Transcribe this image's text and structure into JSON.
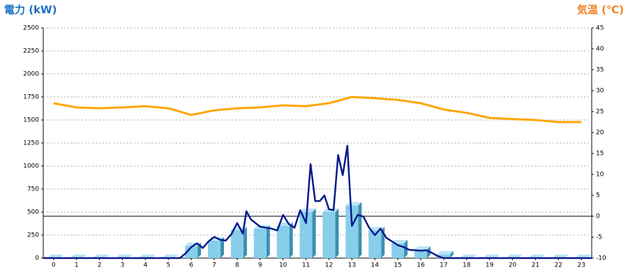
{
  "chart_data": {
    "type": "combo",
    "y_title": "電力 (kW)",
    "y2_title": "気温 (℃)",
    "xlim": [
      -0.45,
      23.45
    ],
    "xticks": [
      0,
      1,
      2,
      3,
      4,
      5,
      6,
      7,
      8,
      9,
      10,
      11,
      12,
      13,
      14,
      15,
      16,
      17,
      18,
      19,
      20,
      21,
      22,
      23
    ],
    "ylim": [
      0,
      2500
    ],
    "yticks": [
      0,
      250,
      500,
      750,
      1000,
      1250,
      1500,
      1750,
      2000,
      2250,
      2500
    ],
    "y2lim": [
      -10,
      45
    ],
    "y2ticks": [
      -10,
      -5,
      0,
      5,
      10,
      15,
      20,
      25,
      30,
      35,
      40,
      45
    ],
    "grid": true,
    "reference_line": {
      "axis": "y2",
      "value": 0
    },
    "series": [
      {
        "type": "bar",
        "color": "#87ceeb",
        "x": [
          0,
          1,
          2,
          3,
          4,
          5,
          6,
          7,
          8,
          9,
          10,
          11,
          12,
          13,
          14,
          15,
          16,
          17,
          18,
          19,
          20,
          21,
          22,
          23
        ],
        "values": [
          0,
          0,
          0,
          0,
          0,
          0,
          130,
          190,
          300,
          320,
          350,
          500,
          500,
          570,
          300,
          160,
          90,
          40,
          0,
          0,
          0,
          0,
          0,
          0
        ]
      },
      {
        "type": "line",
        "color": "#0a1a8c",
        "x": [
          -0.45,
          5.5,
          5.75,
          6,
          6.25,
          6.5,
          6.75,
          7,
          7.25,
          7.5,
          7.75,
          8,
          8.25,
          8.4,
          8.6,
          8.8,
          9,
          9.25,
          9.5,
          9.75,
          10,
          10.25,
          10.5,
          10.75,
          11,
          11.2,
          11.4,
          11.6,
          11.8,
          12,
          12.2,
          12.4,
          12.6,
          12.8,
          13,
          13.25,
          13.5,
          13.75,
          14,
          14.25,
          14.5,
          14.75,
          15,
          15.25,
          15.5,
          16,
          16.25,
          16.5,
          16.75,
          17,
          23.45
        ],
        "values": [
          0,
          0,
          50,
          120,
          160,
          110,
          180,
          230,
          200,
          190,
          260,
          380,
          265,
          510,
          420,
          380,
          340,
          330,
          320,
          300,
          470,
          370,
          330,
          520,
          380,
          1020,
          620,
          620,
          680,
          530,
          520,
          1120,
          900,
          1220,
          350,
          470,
          450,
          330,
          250,
          320,
          220,
          180,
          140,
          120,
          90,
          80,
          85,
          55,
          20,
          0,
          0
        ]
      },
      {
        "type": "line",
        "axis": "y2",
        "color": "#ffa500",
        "x": [
          0,
          1,
          2,
          3,
          4,
          5,
          6,
          7,
          8,
          9,
          10,
          11,
          12,
          13,
          14,
          15,
          16,
          17,
          18,
          19,
          20,
          21,
          22,
          23
        ],
        "values": [
          27,
          26,
          25.8,
          26,
          26.3,
          25.8,
          24.2,
          25.3,
          25.8,
          26,
          26.5,
          26.3,
          27,
          28.5,
          28.2,
          27.8,
          27,
          25.5,
          24.7,
          23.5,
          23.2,
          23,
          22.5,
          22.5
        ]
      }
    ]
  }
}
